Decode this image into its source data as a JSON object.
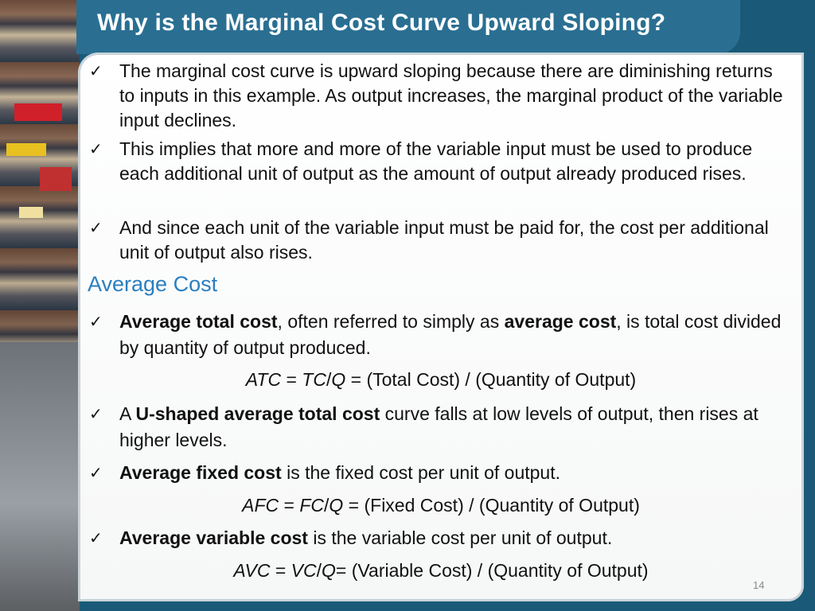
{
  "slide": {
    "title": "Why is the Marginal Cost Curve Upward Sloping?",
    "page_number": "14",
    "check_glyph": "✓",
    "bullets_top": [
      "The marginal cost curve is upward sloping because there are diminishing returns to inputs in this example. As output increases, the marginal product of the variable input declines.",
      "This implies that more and more of the variable input must be used to produce each additional unit of output as the amount of output already produced rises.",
      "And since each unit of the variable input must be paid for, the cost per additional unit of output also rises."
    ],
    "section_heading": "Average Cost",
    "b4": {
      "bold1": "Average total cost",
      "mid": ", often referred to simply as ",
      "bold2": "average cost",
      "end": ", is total cost divided by quantity of output produced."
    },
    "f1": {
      "atc": "ATC",
      "eq1": " = ",
      "tc": "TC",
      "slash": "/",
      "q": "Q",
      "rest": " = (Total Cost) / (Quantity of Output)"
    },
    "b5": {
      "pre": "A ",
      "bold": "U-shaped average total cost",
      "end": " curve falls at low levels of output, then rises at higher levels."
    },
    "b6": {
      "bold": "Average fixed cost",
      "end": " is the fixed cost per unit of output."
    },
    "f2": {
      "afc": "AFC",
      "eq1": " = ",
      "fc": "FC",
      "slash": "/",
      "q": "Q",
      "rest": " = (Fixed Cost) / (Quantity of Output)"
    },
    "b7": {
      "bold": "Average variable cost",
      "end": " is the variable cost per unit of output."
    },
    "f3": {
      "avc": "AVC",
      "eq1": " = ",
      "vc": "VC",
      "slash": "/",
      "q": "Q",
      "rest": "= (Variable Cost) / (Quantity of Output)"
    }
  }
}
